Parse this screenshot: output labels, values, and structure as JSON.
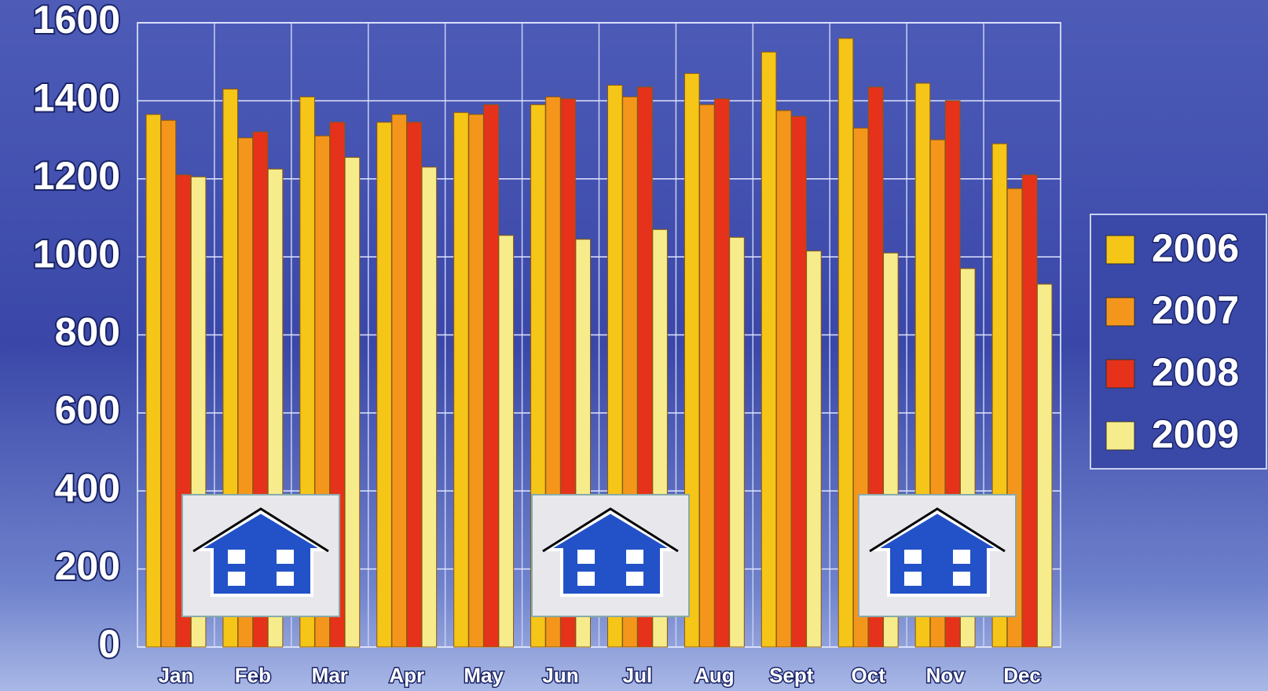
{
  "chart_data": {
    "type": "bar",
    "categories": [
      "Jan",
      "Feb",
      "Mar",
      "Apr",
      "May",
      "Jun",
      "Jul",
      "Aug",
      "Sept",
      "Oct",
      "Nov",
      "Dec"
    ],
    "series": [
      {
        "name": "2006",
        "color": "#f5c518",
        "values": [
          1365,
          1430,
          1410,
          1345,
          1370,
          1390,
          1440,
          1470,
          1525,
          1560,
          1445,
          1290
        ]
      },
      {
        "name": "2007",
        "color": "#f5961c",
        "values": [
          1350,
          1305,
          1310,
          1365,
          1365,
          1410,
          1410,
          1390,
          1375,
          1330,
          1300,
          1175
        ]
      },
      {
        "name": "2008",
        "color": "#e6321b",
        "values": [
          1210,
          1320,
          1345,
          1345,
          1390,
          1405,
          1435,
          1405,
          1360,
          1435,
          1400,
          1210
        ]
      },
      {
        "name": "2009",
        "color": "#f7ec8c",
        "values": [
          1205,
          1225,
          1255,
          1230,
          1055,
          1045,
          1070,
          1050,
          1015,
          1010,
          970,
          930
        ]
      }
    ],
    "ylim": [
      0,
      1600
    ],
    "yticks": [
      0,
      200,
      400,
      600,
      800,
      1000,
      1200,
      1400,
      1600
    ],
    "grid": true,
    "legend": "right"
  }
}
